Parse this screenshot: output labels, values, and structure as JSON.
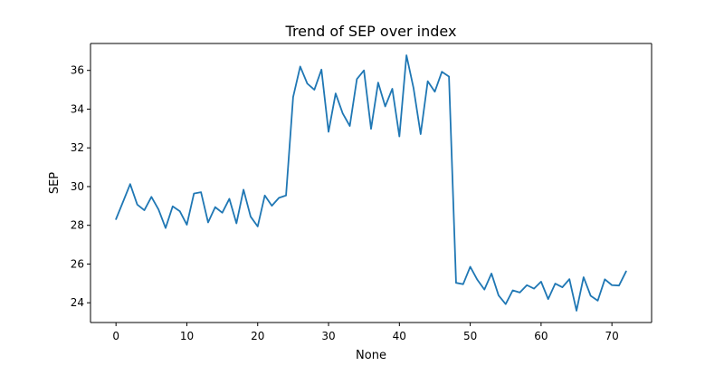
{
  "chart_data": {
    "type": "line",
    "title": "Trend of SEP over index",
    "xlabel": "None",
    "ylabel": "SEP",
    "xlim": [
      -3.6,
      75.6
    ],
    "ylim": [
      22.98,
      37.39
    ],
    "xticks": [
      0,
      10,
      20,
      30,
      40,
      50,
      60,
      70
    ],
    "yticks": [
      24,
      26,
      28,
      30,
      32,
      34,
      36
    ],
    "grid": false,
    "line_color": "#1f77b4",
    "series": [
      {
        "x": [
          0,
          1,
          2,
          3,
          4,
          5,
          6,
          7,
          8,
          9,
          10,
          11,
          12,
          13,
          14,
          15,
          16,
          17,
          18,
          19,
          20,
          21,
          22,
          23,
          24,
          25,
          26,
          27,
          28,
          29,
          30,
          31,
          32,
          33,
          34,
          35,
          36,
          37,
          38,
          39,
          40,
          41,
          42,
          43,
          44,
          45,
          46,
          47,
          48,
          49,
          50,
          51,
          52,
          53,
          54,
          55,
          56,
          57,
          58,
          59,
          60,
          61,
          62,
          63,
          64,
          65,
          66,
          67,
          68,
          69,
          70,
          71,
          72
        ],
        "values": [
          28.32,
          29.22,
          30.13,
          29.07,
          28.78,
          29.47,
          28.82,
          27.86,
          28.98,
          28.73,
          28.03,
          29.64,
          29.71,
          28.15,
          28.94,
          28.65,
          29.37,
          28.1,
          29.84,
          28.45,
          27.94,
          29.54,
          29.01,
          29.42,
          29.54,
          34.62,
          36.2,
          35.32,
          35.0,
          36.04,
          32.83,
          34.81,
          33.78,
          33.13,
          35.55,
          36.0,
          32.98,
          35.37,
          34.14,
          35.05,
          32.59,
          36.78,
          35.08,
          32.71,
          35.44,
          34.9,
          35.93,
          35.68,
          25.03,
          24.96,
          25.86,
          25.19,
          24.68,
          25.51,
          24.38,
          23.93,
          24.64,
          24.53,
          24.91,
          24.73,
          25.09,
          24.19,
          24.99,
          24.8,
          25.22,
          23.59,
          25.32,
          24.36,
          24.11,
          25.21,
          24.91,
          24.89,
          25.62
        ]
      }
    ]
  }
}
